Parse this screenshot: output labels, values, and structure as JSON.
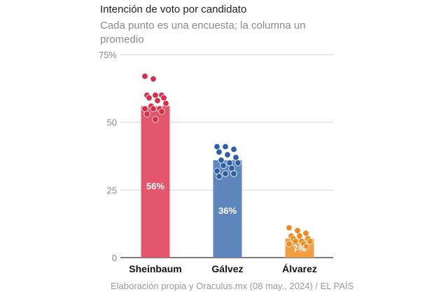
{
  "header": {
    "title": "Intención de voto por candidato",
    "subtitle": "Cada punto es una encuesta; la columna un promedio"
  },
  "source": "Elaboración propia y Oraculus.mx (08 may., 2024) / EL PAÍS",
  "colors": {
    "Sheinbaum": "#e3566b",
    "Gálvez": "#5e86bd",
    "Álvarez": "#f09e3f",
    "Sheinbaum_dot": "#d62f48",
    "Gálvez_dot": "#2f5fa8",
    "Álvarez_dot": "#f08a1e"
  },
  "chart_data": {
    "type": "bar",
    "categories": [
      "Sheinbaum",
      "Gálvez",
      "Álvarez"
    ],
    "values": [
      56,
      36,
      7
    ],
    "value_labels": [
      "56%",
      "36%",
      "7%"
    ],
    "ylim": [
      0,
      75
    ],
    "yticks": [
      0,
      25,
      50,
      75
    ],
    "ytick_labels": [
      "0",
      "25",
      "50",
      "75%"
    ],
    "grid": true,
    "polls": {
      "Sheinbaum": [
        67,
        66,
        60,
        60,
        60,
        59,
        59,
        58,
        57,
        56,
        55,
        55,
        55,
        54,
        53,
        51
      ],
      "Gálvez": [
        41,
        41,
        40,
        39,
        38,
        37,
        36,
        35,
        35,
        34,
        33,
        32,
        31,
        31,
        30
      ],
      "Álvarez": [
        11,
        10,
        9,
        8,
        8,
        7,
        7,
        6,
        6,
        6,
        5,
        5,
        4,
        4
      ]
    }
  }
}
